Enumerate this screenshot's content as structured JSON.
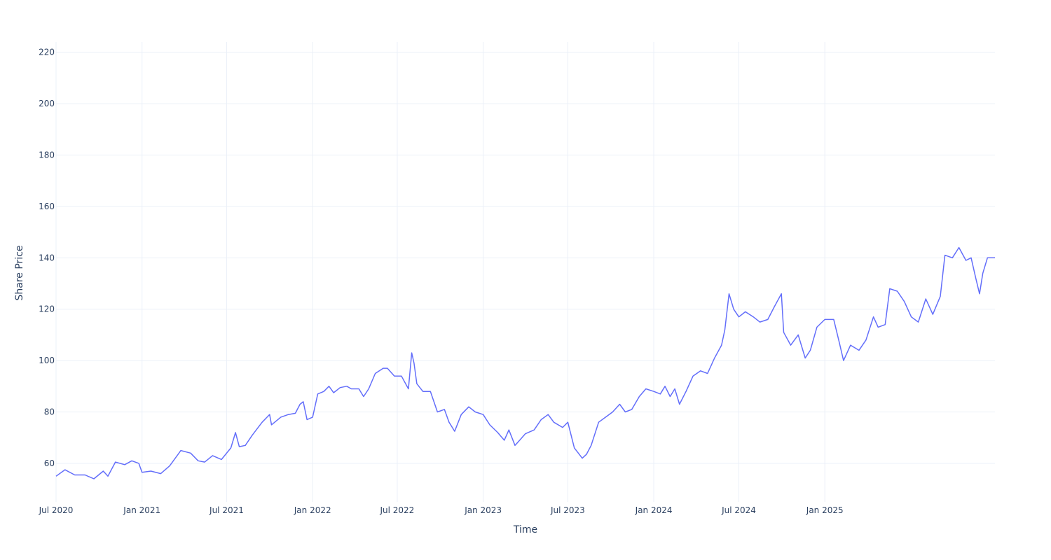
{
  "chart_data": {
    "type": "line",
    "title": "",
    "xlabel": "Time",
    "ylabel": "Share Price",
    "x_range": [
      "2020-07-01",
      "2025-12-31"
    ],
    "ylim": [
      45,
      224
    ],
    "grid": true,
    "legend": "none",
    "x_ticks": [
      "Jul 2020",
      "Jan 2021",
      "Jul 2021",
      "Jan 2022",
      "Jul 2022",
      "Jan 2023",
      "Jul 2023",
      "Jan 2024",
      "Jul 2024",
      "Jan 2025"
    ],
    "x_tick_dates": [
      "2020-07-01",
      "2021-01-01",
      "2021-07-01",
      "2022-01-01",
      "2022-07-01",
      "2023-01-01",
      "2023-07-01",
      "2024-01-01",
      "2024-07-01",
      "2025-01-01"
    ],
    "y_ticks": [
      60,
      80,
      100,
      120,
      140,
      160,
      180,
      200,
      220
    ],
    "series": [
      {
        "color": "#636efa",
        "points": [
          [
            "2020-07-01",
            55
          ],
          [
            "2020-07-20",
            57.5
          ],
          [
            "2020-08-10",
            55.5
          ],
          [
            "2020-09-01",
            55.5
          ],
          [
            "2020-09-20",
            54
          ],
          [
            "2020-10-10",
            57
          ],
          [
            "2020-10-20",
            55
          ],
          [
            "2020-11-05",
            60.5
          ],
          [
            "2020-11-25",
            59.5
          ],
          [
            "2020-12-10",
            61
          ],
          [
            "2020-12-25",
            60
          ],
          [
            "2021-01-01",
            56.5
          ],
          [
            "2021-01-20",
            57
          ],
          [
            "2021-02-10",
            56
          ],
          [
            "2021-03-01",
            59
          ],
          [
            "2021-03-25",
            65
          ],
          [
            "2021-04-15",
            64
          ],
          [
            "2021-05-01",
            61
          ],
          [
            "2021-05-15",
            60.5
          ],
          [
            "2021-06-01",
            63
          ],
          [
            "2021-06-20",
            61.5
          ],
          [
            "2021-07-10",
            66
          ],
          [
            "2021-07-20",
            72
          ],
          [
            "2021-07-28",
            66.5
          ],
          [
            "2021-08-10",
            67
          ],
          [
            "2021-08-25",
            71
          ],
          [
            "2021-09-15",
            76
          ],
          [
            "2021-10-01",
            79
          ],
          [
            "2021-10-05",
            75
          ],
          [
            "2021-10-25",
            78
          ],
          [
            "2021-11-10",
            79
          ],
          [
            "2021-11-25",
            79.5
          ],
          [
            "2021-12-05",
            83
          ],
          [
            "2021-12-12",
            84
          ],
          [
            "2021-12-20",
            77
          ],
          [
            "2022-01-01",
            78
          ],
          [
            "2022-01-12",
            87
          ],
          [
            "2022-01-25",
            88
          ],
          [
            "2022-02-05",
            90
          ],
          [
            "2022-02-15",
            87.5
          ],
          [
            "2022-03-01",
            89.5
          ],
          [
            "2022-03-15",
            90
          ],
          [
            "2022-03-25",
            89
          ],
          [
            "2022-04-10",
            89
          ],
          [
            "2022-04-20",
            86
          ],
          [
            "2022-05-01",
            89
          ],
          [
            "2022-05-15",
            95
          ],
          [
            "2022-06-01",
            97
          ],
          [
            "2022-06-10",
            97
          ],
          [
            "2022-06-25",
            94
          ],
          [
            "2022-07-10",
            94
          ],
          [
            "2022-07-25",
            89
          ],
          [
            "2022-08-01",
            103
          ],
          [
            "2022-08-06",
            99
          ],
          [
            "2022-08-12",
            91
          ],
          [
            "2022-08-25",
            88
          ],
          [
            "2022-09-10",
            88
          ],
          [
            "2022-09-25",
            80
          ],
          [
            "2022-10-10",
            81
          ],
          [
            "2022-10-20",
            76
          ],
          [
            "2022-11-01",
            72.5
          ],
          [
            "2022-11-15",
            79
          ],
          [
            "2022-12-01",
            82
          ],
          [
            "2022-12-15",
            80
          ],
          [
            "2023-01-01",
            79
          ],
          [
            "2023-01-15",
            75
          ],
          [
            "2023-02-01",
            72
          ],
          [
            "2023-02-15",
            69
          ],
          [
            "2023-02-25",
            73
          ],
          [
            "2023-03-10",
            67
          ],
          [
            "2023-03-20",
            69
          ],
          [
            "2023-04-01",
            71.5
          ],
          [
            "2023-04-20",
            73
          ],
          [
            "2023-05-05",
            77
          ],
          [
            "2023-05-20",
            79
          ],
          [
            "2023-06-01",
            76
          ],
          [
            "2023-06-20",
            74
          ],
          [
            "2023-07-01",
            76
          ],
          [
            "2023-07-15",
            66
          ],
          [
            "2023-08-01",
            62
          ],
          [
            "2023-08-10",
            63.5
          ],
          [
            "2023-08-20",
            67
          ],
          [
            "2023-09-05",
            76
          ],
          [
            "2023-09-20",
            78
          ],
          [
            "2023-10-05",
            80
          ],
          [
            "2023-10-20",
            83
          ],
          [
            "2023-11-01",
            80
          ],
          [
            "2023-11-15",
            81
          ],
          [
            "2023-12-01",
            86
          ],
          [
            "2023-12-15",
            89
          ],
          [
            "2024-01-01",
            88
          ],
          [
            "2024-01-15",
            87
          ],
          [
            "2024-01-25",
            90
          ],
          [
            "2024-02-05",
            86
          ],
          [
            "2024-02-15",
            89
          ],
          [
            "2024-02-25",
            83
          ],
          [
            "2024-03-10",
            88
          ],
          [
            "2024-03-25",
            94
          ],
          [
            "2024-04-10",
            96
          ],
          [
            "2024-04-25",
            95
          ],
          [
            "2024-05-10",
            101
          ],
          [
            "2024-05-25",
            106
          ],
          [
            "2024-06-01",
            112
          ],
          [
            "2024-06-10",
            126
          ],
          [
            "2024-06-20",
            120
          ],
          [
            "2024-07-01",
            117
          ],
          [
            "2024-07-15",
            119
          ],
          [
            "2024-08-01",
            117
          ],
          [
            "2024-08-15",
            115
          ],
          [
            "2024-09-01",
            116
          ],
          [
            "2024-09-15",
            121
          ],
          [
            "2024-09-30",
            126
          ],
          [
            "2024-10-05",
            111
          ],
          [
            "2024-10-20",
            106
          ],
          [
            "2024-11-05",
            110
          ],
          [
            "2024-11-20",
            101
          ],
          [
            "2024-12-01",
            104
          ],
          [
            "2024-12-15",
            113
          ],
          [
            "2025-01-01",
            116
          ],
          [
            "2025-01-20",
            116
          ],
          [
            "2025-02-01",
            107
          ],
          [
            "2025-02-10",
            100
          ],
          [
            "2025-02-25",
            106
          ],
          [
            "2025-03-15",
            104
          ],
          [
            "2025-03-30",
            108
          ],
          [
            "2025-04-15",
            117
          ],
          [
            "2025-04-25",
            113
          ],
          [
            "2025-05-10",
            114
          ],
          [
            "2025-05-20",
            128
          ],
          [
            "2025-06-05",
            127
          ],
          [
            "2025-06-20",
            123
          ],
          [
            "2025-07-05",
            117
          ],
          [
            "2025-07-20",
            115
          ],
          [
            "2025-08-05",
            124
          ],
          [
            "2025-08-20",
            118
          ],
          [
            "2025-09-05",
            125
          ],
          [
            "2025-09-15",
            141
          ],
          [
            "2025-10-01",
            140
          ],
          [
            "2025-10-15",
            144
          ],
          [
            "2025-10-30",
            139
          ],
          [
            "2025-11-10",
            140
          ],
          [
            "2025-11-20",
            132
          ],
          [
            "2025-11-28",
            126
          ],
          [
            "2025-12-05",
            134
          ],
          [
            "2025-12-15",
            140
          ],
          [
            "2025-12-31",
            140
          ]
        ]
      }
    ]
  }
}
